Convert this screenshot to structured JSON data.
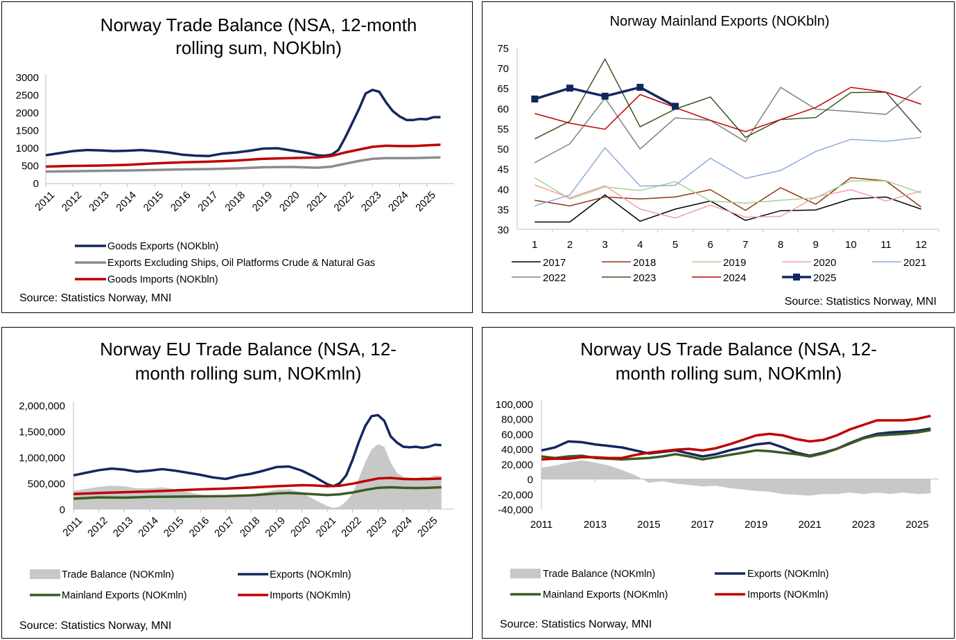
{
  "colors": {
    "navy": "#13275f",
    "grey": "#8c8c8c",
    "red": "#c00000",
    "green": "#3c5a23",
    "area": "#c8c8c8",
    "axis": "#bfbfbf"
  },
  "chart_data": [
    {
      "id": "trade-balance",
      "type": "line",
      "title_lines": [
        "Norway Trade Balance (NSA, 12-month",
        "rolling sum, NOKbln)"
      ],
      "x_ticks": [
        "2011",
        "2012",
        "2013",
        "2014",
        "2015",
        "2016",
        "2017",
        "2018",
        "2019",
        "2020",
        "2021",
        "2022",
        "2023",
        "2024",
        "2025"
      ],
      "y_ticks": [
        "0",
        "500",
        "1000",
        "1500",
        "2000",
        "2500",
        "3000"
      ],
      "ylim": [
        0,
        3000
      ],
      "xlim": [
        2011,
        2026
      ],
      "series": [
        {
          "name": "Goods Exports (NOKbln)",
          "color": "navy",
          "x": [
            2011,
            2011.5,
            2012,
            2012.5,
            2013,
            2013.5,
            2014,
            2014.5,
            2015,
            2015.5,
            2016,
            2016.5,
            2017,
            2017.5,
            2018,
            2018.5,
            2019,
            2019.5,
            2020,
            2020.5,
            2021,
            2021.25,
            2021.5,
            2021.75,
            2022,
            2022.25,
            2022.5,
            2022.75,
            2023,
            2023.25,
            2023.5,
            2023.75,
            2024,
            2024.25,
            2024.5,
            2024.75,
            2025,
            2025.25,
            2025.5
          ],
          "y": [
            800,
            860,
            920,
            950,
            940,
            920,
            930,
            950,
            920,
            880,
            820,
            790,
            780,
            850,
            880,
            930,
            990,
            1000,
            940,
            880,
            800,
            790,
            820,
            950,
            1300,
            1700,
            2100,
            2550,
            2650,
            2600,
            2300,
            2050,
            1900,
            1800,
            1800,
            1830,
            1820,
            1880,
            1880
          ]
        },
        {
          "name": "Exports Excluding Ships, Oil Platforms Crude & Natural Gas",
          "color": "grey",
          "x": [
            2011,
            2012,
            2013,
            2014,
            2015,
            2016,
            2017,
            2018,
            2019,
            2020,
            2021,
            2021.5,
            2022,
            2022.5,
            2023,
            2023.5,
            2024,
            2024.5,
            2025,
            2025.5
          ],
          "y": [
            340,
            350,
            360,
            370,
            385,
            400,
            410,
            430,
            460,
            470,
            450,
            480,
            560,
            640,
            700,
            720,
            720,
            720,
            730,
            740
          ]
        },
        {
          "name": "Goods Imports (NOKbln)",
          "color": "red",
          "x": [
            2011,
            2012,
            2013,
            2014,
            2015,
            2016,
            2017,
            2018,
            2019,
            2020,
            2021,
            2021.5,
            2022,
            2022.5,
            2023,
            2023.5,
            2024,
            2024.5,
            2025,
            2025.5
          ],
          "y": [
            480,
            500,
            510,
            530,
            570,
            600,
            620,
            650,
            700,
            720,
            740,
            780,
            880,
            960,
            1040,
            1070,
            1060,
            1060,
            1080,
            1100
          ]
        }
      ],
      "source": "Source: Statistics Norway, MNI"
    },
    {
      "id": "mainland-exports",
      "type": "line",
      "title": "Norway Mainland Exports (NOKbln)",
      "x_ticks": [
        "1",
        "2",
        "3",
        "4",
        "5",
        "6",
        "7",
        "8",
        "9",
        "10",
        "11",
        "12"
      ],
      "y_ticks": [
        "30",
        "35",
        "40",
        "45",
        "50",
        "55",
        "60",
        "65",
        "70",
        "75"
      ],
      "ylim": [
        30,
        75
      ],
      "series": [
        {
          "name": "2017",
          "color": "#000000",
          "width": 1.5,
          "values": [
            31.8,
            31.8,
            38.5,
            32.0,
            35.0,
            37.0,
            32.2,
            34.6,
            34.8,
            37.5,
            38.0,
            35.0
          ]
        },
        {
          "name": "2018",
          "color": "#8b3a0e",
          "width": 1.5,
          "values": [
            37.2,
            35.8,
            38.0,
            37.5,
            38.0,
            39.8,
            34.7,
            40.3,
            36.2,
            42.8,
            42.0,
            35.5
          ]
        },
        {
          "name": "2019",
          "color": "#a8d08d",
          "width": 1.5,
          "values": [
            42.8,
            37.5,
            40.5,
            39.6,
            41.8,
            37.0,
            36.5,
            37.2,
            37.8,
            42.0,
            42.0,
            39.0
          ]
        },
        {
          "name": "2020",
          "color": "#f4a0a0",
          "width": 1.5,
          "values": [
            41.0,
            37.8,
            40.8,
            35.0,
            32.8,
            36.0,
            33.0,
            33.2,
            38.0,
            39.8,
            37.0,
            39.5
          ]
        },
        {
          "name": "2021",
          "color": "#8eaadb",
          "width": 1.5,
          "values": [
            35.8,
            38.5,
            50.2,
            40.7,
            40.9,
            47.6,
            42.6,
            44.6,
            49.3,
            52.3,
            51.8,
            52.8
          ]
        },
        {
          "name": "2022",
          "color": "#808080",
          "width": 1.5,
          "values": [
            46.5,
            51.2,
            62.5,
            49.9,
            57.6,
            57.0,
            51.7,
            65.2,
            59.8,
            59.2,
            58.5,
            65.5
          ]
        },
        {
          "name": "2023",
          "color": "#375623",
          "width": 1.5,
          "values": [
            52.4,
            56.8,
            72.2,
            55.4,
            59.8,
            62.8,
            52.8,
            57.2,
            57.7,
            63.9,
            64.0,
            54.0
          ]
        },
        {
          "name": "2024",
          "color": "#c00000",
          "width": 1.5,
          "values": [
            58.7,
            56.3,
            54.8,
            63.4,
            60.2,
            57.0,
            54.2,
            57.2,
            60.2,
            65.2,
            64.0,
            61.0
          ]
        },
        {
          "name": "2025",
          "color": "#13275f",
          "width": 3.5,
          "markers": true,
          "values": [
            62.3,
            65.0,
            63.0,
            65.2,
            60.5
          ]
        }
      ],
      "source": "Source: Statistics Norway, MNI"
    },
    {
      "id": "eu-trade-balance",
      "type": "line",
      "title_lines": [
        "Norway EU Trade Balance (NSA, 12-",
        "month rolling sum, NOKmln)"
      ],
      "x_ticks": [
        "2011",
        "2012",
        "2013",
        "2014",
        "2015",
        "2016",
        "2017",
        "2018",
        "2019",
        "2020",
        "2021",
        "2022",
        "2023",
        "2024",
        "2025"
      ],
      "y_ticks": [
        "0",
        "500,000",
        "1,000,000",
        "1,500,000",
        "2,000,000"
      ],
      "ylim": [
        0,
        2000000
      ],
      "xlim": [
        2011,
        2026
      ],
      "series": [
        {
          "name": "Trade Balance (NOKmln)",
          "color": "area",
          "kind": "area",
          "x": [
            2011,
            2011.5,
            2012,
            2012.5,
            2013,
            2013.5,
            2014,
            2014.5,
            2015,
            2015.5,
            2016,
            2016.5,
            2017,
            2017.5,
            2018,
            2018.5,
            2019,
            2019.5,
            2020,
            2020.5,
            2021,
            2021.25,
            2021.5,
            2021.75,
            2022,
            2022.25,
            2022.5,
            2022.75,
            2023,
            2023.25,
            2023.5,
            2023.75,
            2024,
            2024.25,
            2024.5,
            2024.75,
            2025,
            2025.25,
            2025.5
          ],
          "y": [
            350000,
            390000,
            430000,
            450000,
            440000,
            400000,
            400000,
            420000,
            380000,
            330000,
            280000,
            240000,
            250000,
            270000,
            280000,
            320000,
            370000,
            380000,
            320000,
            180000,
            60000,
            20000,
            50000,
            150000,
            300000,
            600000,
            900000,
            1150000,
            1250000,
            1200000,
            900000,
            700000,
            620000,
            600000,
            600000,
            620000,
            610000,
            650000,
            640000
          ]
        },
        {
          "name": "Exports (NOKmln)",
          "color": "navy",
          "x": [
            2011,
            2011.5,
            2012,
            2012.5,
            2013,
            2013.5,
            2014,
            2014.5,
            2015,
            2015.5,
            2016,
            2016.5,
            2017,
            2017.5,
            2018,
            2018.5,
            2019,
            2019.5,
            2020,
            2020.5,
            2021,
            2021.25,
            2021.5,
            2021.75,
            2022,
            2022.25,
            2022.5,
            2022.75,
            2023,
            2023.25,
            2023.5,
            2023.75,
            2024,
            2024.25,
            2024.5,
            2024.75,
            2025,
            2025.25,
            2025.5
          ],
          "y": [
            650000,
            700000,
            750000,
            780000,
            760000,
            720000,
            740000,
            770000,
            740000,
            700000,
            660000,
            610000,
            580000,
            640000,
            680000,
            740000,
            810000,
            820000,
            740000,
            620000,
            480000,
            440000,
            500000,
            650000,
            950000,
            1300000,
            1600000,
            1790000,
            1810000,
            1700000,
            1400000,
            1280000,
            1200000,
            1190000,
            1200000,
            1180000,
            1200000,
            1240000,
            1230000
          ]
        },
        {
          "name": "Mainland Exports (NOKmln)",
          "color": "green",
          "x": [
            2011,
            2012,
            2013,
            2014,
            2015,
            2016,
            2017,
            2018,
            2019,
            2019.5,
            2020,
            2020.5,
            2021,
            2021.5,
            2022,
            2022.5,
            2023,
            2023.5,
            2024,
            2024.5,
            2025,
            2025.5
          ],
          "y": [
            200000,
            225000,
            220000,
            235000,
            240000,
            245000,
            250000,
            265000,
            300000,
            310000,
            300000,
            285000,
            270000,
            285000,
            320000,
            370000,
            410000,
            420000,
            410000,
            405000,
            410000,
            420000
          ]
        },
        {
          "name": "Imports (NOKmln)",
          "color": "red",
          "x": [
            2011,
            2012,
            2013,
            2014,
            2015,
            2016,
            2017,
            2018,
            2019,
            2020,
            2020.5,
            2021,
            2021.5,
            2022,
            2022.5,
            2023,
            2023.5,
            2024,
            2024.5,
            2025,
            2025.5
          ],
          "y": [
            290000,
            310000,
            325000,
            340000,
            360000,
            380000,
            395000,
            415000,
            440000,
            460000,
            455000,
            440000,
            450000,
            490000,
            540000,
            590000,
            600000,
            580000,
            575000,
            580000,
            590000
          ]
        }
      ],
      "source": "Source: Statistics Norway, MNI"
    },
    {
      "id": "us-trade-balance",
      "type": "line",
      "title_lines": [
        "Norway US Trade Balance (NSA, 12-",
        "month rolling sum, NOKmln)"
      ],
      "x_ticks": [
        "2011",
        "2013",
        "2015",
        "2017",
        "2019",
        "2021",
        "2023",
        "2025"
      ],
      "y_ticks": [
        "-40,000",
        "-20,000",
        "0",
        "20,000",
        "40,000",
        "60,000",
        "80,000",
        "100,000"
      ],
      "ylim": [
        -40000,
        100000
      ],
      "xlim": [
        2011,
        2025.8
      ],
      "series": [
        {
          "name": "Trade Balance (NOKmln)",
          "color": "area",
          "kind": "area",
          "x": [
            2011,
            2011.5,
            2012,
            2012.5,
            2013,
            2013.5,
            2014,
            2014.5,
            2015,
            2015.5,
            2016,
            2016.5,
            2017,
            2017.5,
            2018,
            2018.5,
            2019,
            2019.5,
            2020,
            2020.5,
            2021,
            2021.5,
            2022,
            2022.5,
            2023,
            2023.5,
            2024,
            2024.5,
            2025,
            2025.5
          ],
          "y": [
            15000,
            18000,
            22000,
            25000,
            22000,
            18000,
            12000,
            5000,
            -5000,
            -3000,
            -6000,
            -8000,
            -10000,
            -9000,
            -12000,
            -14000,
            -16000,
            -17000,
            -20000,
            -21000,
            -22000,
            -20000,
            -20000,
            -18000,
            -20000,
            -18000,
            -20000,
            -18000,
            -20000,
            -19000
          ]
        },
        {
          "name": "Exports (NOKmln)",
          "color": "navy",
          "x": [
            2011,
            2011.5,
            2012,
            2012.5,
            2013,
            2013.5,
            2014,
            2014.5,
            2015,
            2015.5,
            2016,
            2016.5,
            2017,
            2017.5,
            2018,
            2018.5,
            2019,
            2019.5,
            2020,
            2020.5,
            2021,
            2021.5,
            2022,
            2022.5,
            2023,
            2023.5,
            2024,
            2024.5,
            2025,
            2025.5
          ],
          "y": [
            38000,
            42000,
            50000,
            49000,
            46000,
            44000,
            42000,
            38000,
            34000,
            36000,
            38000,
            34000,
            30000,
            33000,
            38000,
            42000,
            46000,
            48000,
            42000,
            35000,
            31000,
            35000,
            40000,
            48000,
            55000,
            60000,
            62000,
            63000,
            64000,
            67000
          ]
        },
        {
          "name": "Mainland Exports (NOKmln)",
          "color": "green",
          "x": [
            2011,
            2011.5,
            2012,
            2012.5,
            2013,
            2013.5,
            2014,
            2014.5,
            2015,
            2015.5,
            2016,
            2016.5,
            2017,
            2017.5,
            2018,
            2018.5,
            2019,
            2019.5,
            2020,
            2020.5,
            2021,
            2021.5,
            2022,
            2022.5,
            2023,
            2023.5,
            2024,
            2024.5,
            2025,
            2025.5
          ],
          "y": [
            30000,
            28000,
            30000,
            31000,
            28000,
            27000,
            26000,
            27000,
            28000,
            30000,
            33000,
            30000,
            26000,
            29000,
            32000,
            35000,
            38000,
            37000,
            35000,
            33000,
            30000,
            34000,
            40000,
            47000,
            54000,
            58000,
            59000,
            60000,
            62000,
            65000
          ]
        },
        {
          "name": "Imports (NOKmln)",
          "color": "red",
          "x": [
            2011,
            2011.5,
            2012,
            2012.5,
            2013,
            2013.5,
            2014,
            2014.5,
            2015,
            2015.5,
            2016,
            2016.5,
            2017,
            2017.5,
            2018,
            2018.5,
            2019,
            2019.5,
            2020,
            2020.5,
            2021,
            2021.5,
            2022,
            2022.5,
            2023,
            2023.5,
            2024,
            2024.5,
            2025,
            2025.5
          ],
          "y": [
            26000,
            27000,
            27000,
            29000,
            29000,
            28000,
            28000,
            32000,
            35000,
            37000,
            39000,
            40000,
            38000,
            41000,
            46000,
            52000,
            58000,
            60000,
            58000,
            53000,
            50000,
            52000,
            58000,
            66000,
            72000,
            78000,
            78000,
            78000,
            80000,
            84000
          ]
        }
      ],
      "source": "Source: Statistics Norway, MNI"
    }
  ]
}
